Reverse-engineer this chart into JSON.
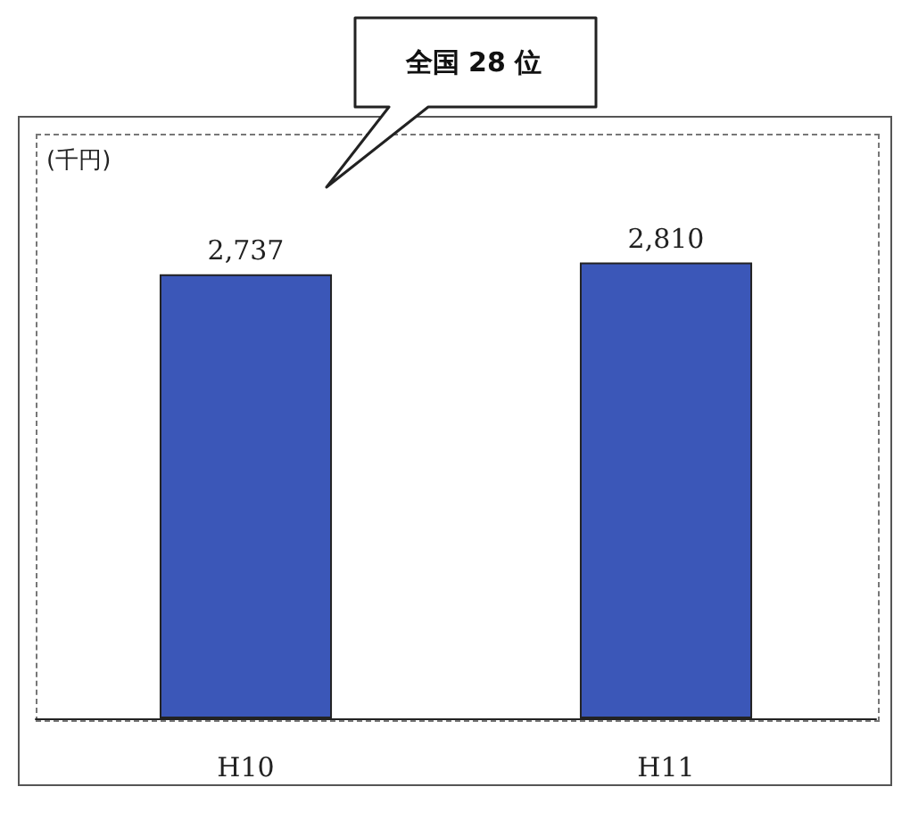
{
  "chart_data": {
    "type": "bar",
    "ylabel": "(千円)",
    "categories": [
      "H10",
      "H11"
    ],
    "values": [
      2737,
      2810
    ],
    "value_labels": [
      "2,737",
      "2,810"
    ],
    "color": "#3b57b8",
    "annotations": [
      "全国 28 位"
    ]
  }
}
